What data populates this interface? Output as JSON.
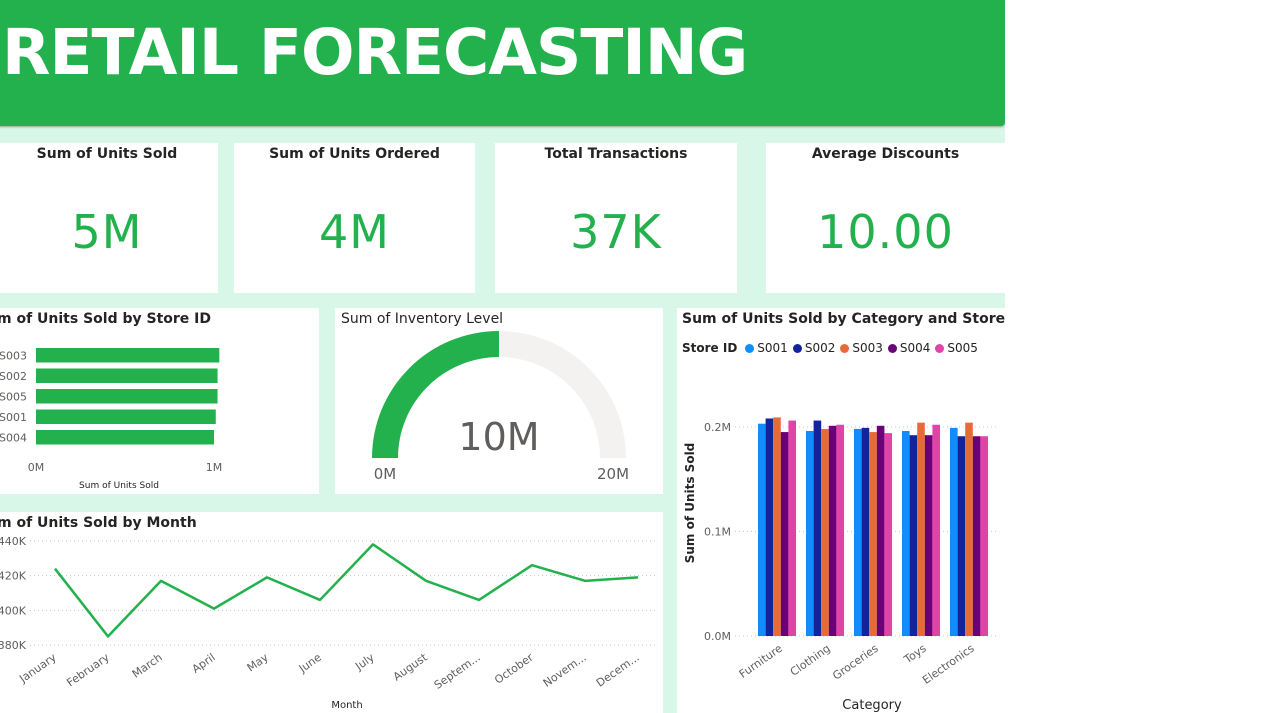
{
  "banner": {
    "title": "RETAIL FORECASTING"
  },
  "kpis": [
    {
      "title": "Sum of Units Sold",
      "value": "5M"
    },
    {
      "title": "Sum of Units Ordered",
      "value": "4M"
    },
    {
      "title": "Total Transactions",
      "value": "37K"
    },
    {
      "title": "Average Discounts",
      "value": "10.00"
    }
  ],
  "colors": {
    "accent": "#22b14c",
    "gauge_track": "#f3f2f1",
    "series": [
      "#118dff",
      "#12239e",
      "#e66c37",
      "#6b007b",
      "#e044a7"
    ]
  },
  "chart_data": [
    {
      "id": "store",
      "type": "bar",
      "orientation": "horizontal",
      "title": "Sum of Units Sold by Store ID",
      "title_visible": "m of Units Sold by Store ID",
      "categories": [
        "S003",
        "S002",
        "S005",
        "S001",
        "S004"
      ],
      "category_labels_visible": [
        "S003",
        "S002",
        "S005",
        "S001",
        "S004"
      ],
      "values": [
        1.03,
        1.02,
        1.02,
        1.01,
        1.0
      ],
      "xlabel": "Sum of Units Sold",
      "xlim": [
        0,
        1
      ],
      "xticks": [
        "0M",
        "1M"
      ]
    },
    {
      "id": "gauge",
      "type": "gauge",
      "title": "Sum of Inventory Level",
      "value": 10,
      "value_label": "10M",
      "min": 0,
      "max": 20,
      "min_label": "0M",
      "max_label": "20M"
    },
    {
      "id": "month",
      "type": "line",
      "title": "Sum of Units Sold by Month",
      "title_visible": "m of Units Sold by Month",
      "categories": [
        "January",
        "February",
        "March",
        "April",
        "May",
        "June",
        "July",
        "August",
        "September",
        "October",
        "November",
        "December"
      ],
      "category_labels": [
        "January",
        "February",
        "March",
        "April",
        "May",
        "June",
        "July",
        "August",
        "Septem...",
        "October",
        "Novem...",
        "Decem..."
      ],
      "values": [
        424,
        385,
        417,
        401,
        419,
        406,
        438,
        417,
        406,
        426,
        417,
        419
      ],
      "xlabel": "Month",
      "ylim": [
        372,
        448
      ],
      "yticks": [
        380,
        400,
        420,
        440
      ],
      "ytick_labels": [
        "380K",
        "400K",
        "420K",
        "440K"
      ]
    },
    {
      "id": "category",
      "type": "bar",
      "orientation": "vertical",
      "title": "Sum of Units Sold by Category and Store I...",
      "legend_title": "Store ID",
      "categories": [
        "Furniture",
        "Clothing",
        "Groceries",
        "Toys",
        "Electronics"
      ],
      "series": [
        {
          "name": "S001",
          "values": [
            0.203,
            0.196,
            0.198,
            0.196,
            0.199
          ]
        },
        {
          "name": "S002",
          "values": [
            0.208,
            0.206,
            0.199,
            0.192,
            0.191
          ]
        },
        {
          "name": "S003",
          "values": [
            0.209,
            0.198,
            0.195,
            0.204,
            0.204
          ]
        },
        {
          "name": "S004",
          "values": [
            0.195,
            0.201,
            0.201,
            0.192,
            0.191
          ]
        },
        {
          "name": "S005",
          "values": [
            0.206,
            0.202,
            0.194,
            0.202,
            0.191
          ]
        }
      ],
      "xlabel": "Category",
      "ylabel": "Sum of Units Sold",
      "ylim": [
        0,
        0.24
      ],
      "yticks": [
        0,
        0.1,
        0.2
      ],
      "ytick_labels": [
        "0.0M",
        "0.1M",
        "0.2M"
      ]
    }
  ]
}
